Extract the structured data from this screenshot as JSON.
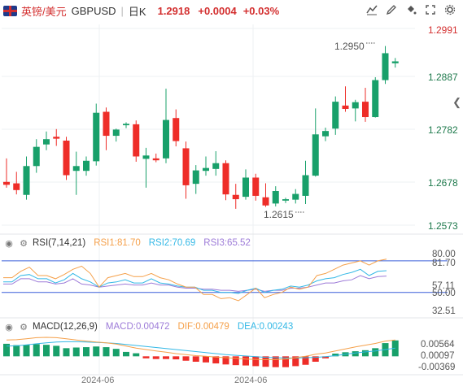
{
  "header": {
    "pair_name": "英镑/美元",
    "symbol": "GBPUSD",
    "interval": "日K",
    "last_price": "1.2918",
    "change": "+0.0004",
    "change_pct": "+0.03%",
    "tools": [
      "chart-type-icon",
      "draw-icon",
      "fill-icon",
      "fullscreen-icon",
      "settings-icon"
    ]
  },
  "colors": {
    "up": "#18a06a",
    "down": "#ee2d28",
    "rsi1": "#f5a04a",
    "rsi2": "#33b8e6",
    "rsi3": "#9d7bd8",
    "macd": "#9d7bd8",
    "dif": "#f5a04a",
    "dea": "#33b8e6",
    "price_label": "#d32f2f",
    "ref_line": "#3a5fd9"
  },
  "main_axis": {
    "top_label": "1.2991",
    "ticks": [
      "1.2887",
      "1.2782",
      "1.2678",
      "1.2573"
    ],
    "high_annotation": "1.2950",
    "low_annotation": "1.2615"
  },
  "rsi": {
    "name": "RSI(7,14,21)",
    "rsi1": "RSI1:81.70",
    "rsi2": "RSI2:70.69",
    "rsi3": "RSI3:65.52",
    "axis": [
      "80.00",
      "81.70",
      "57.11",
      "50.00",
      "32.51"
    ]
  },
  "macd": {
    "name": "MACD(12,26,9)",
    "macd": "MACD:0.00472",
    "dif": "DIF:0.00479",
    "dea": "DEA:0.00243",
    "axis": [
      "0.00564",
      "0.00097",
      "-0.00369"
    ]
  },
  "date_labels": [
    "2024-06",
    "2024-06"
  ],
  "chart_data": {
    "type": "candlestick",
    "candles": [
      {
        "o": 1.2667,
        "h": 1.2716,
        "l": 1.2655,
        "c": 1.2661
      },
      {
        "o": 1.2664,
        "h": 1.2688,
        "l": 1.2641,
        "c": 1.265
      },
      {
        "o": 1.264,
        "h": 1.272,
        "l": 1.263,
        "c": 1.27
      },
      {
        "o": 1.27,
        "h": 1.2756,
        "l": 1.2686,
        "c": 1.274
      },
      {
        "o": 1.2745,
        "h": 1.2772,
        "l": 1.2733,
        "c": 1.2756
      },
      {
        "o": 1.2761,
        "h": 1.2777,
        "l": 1.2742,
        "c": 1.2757
      },
      {
        "o": 1.2753,
        "h": 1.2761,
        "l": 1.2671,
        "c": 1.2681
      },
      {
        "o": 1.269,
        "h": 1.273,
        "l": 1.264,
        "c": 1.27
      },
      {
        "o": 1.269,
        "h": 1.272,
        "l": 1.268,
        "c": 1.2711
      },
      {
        "o": 1.271,
        "h": 1.283,
        "l": 1.2701,
        "c": 1.2811
      },
      {
        "o": 1.2813,
        "h": 1.2822,
        "l": 1.2733,
        "c": 1.2763
      },
      {
        "o": 1.2763,
        "h": 1.2778,
        "l": 1.2751,
        "c": 1.2776
      },
      {
        "o": 1.2785,
        "h": 1.2791,
        "l": 1.2779,
        "c": 1.2788
      },
      {
        "o": 1.2787,
        "h": 1.2795,
        "l": 1.2709,
        "c": 1.272
      },
      {
        "o": 1.2715,
        "h": 1.2738,
        "l": 1.2655,
        "c": 1.2722
      },
      {
        "o": 1.2716,
        "h": 1.2726,
        "l": 1.2708,
        "c": 1.2712
      },
      {
        "o": 1.2716,
        "h": 1.2861,
        "l": 1.2706,
        "c": 1.2796
      },
      {
        "o": 1.28,
        "h": 1.2818,
        "l": 1.2741,
        "c": 1.2752
      },
      {
        "o": 1.2737,
        "h": 1.2751,
        "l": 1.2632,
        "c": 1.266
      },
      {
        "o": 1.2663,
        "h": 1.2702,
        "l": 1.2642,
        "c": 1.2691
      },
      {
        "o": 1.269,
        "h": 1.272,
        "l": 1.268,
        "c": 1.2696
      },
      {
        "o": 1.2694,
        "h": 1.2731,
        "l": 1.268,
        "c": 1.2706
      },
      {
        "o": 1.2706,
        "h": 1.2712,
        "l": 1.2629,
        "c": 1.2641
      },
      {
        "o": 1.264,
        "h": 1.2663,
        "l": 1.2611,
        "c": 1.2631
      },
      {
        "o": 1.2636,
        "h": 1.2693,
        "l": 1.263,
        "c": 1.2676
      },
      {
        "o": 1.2676,
        "h": 1.2684,
        "l": 1.2628,
        "c": 1.2638
      },
      {
        "o": 1.2635,
        "h": 1.2664,
        "l": 1.2615,
        "c": 1.2618
      },
      {
        "o": 1.2622,
        "h": 1.2658,
        "l": 1.2616,
        "c": 1.2648
      },
      {
        "o": 1.2628,
        "h": 1.2634,
        "l": 1.2623,
        "c": 1.2631
      },
      {
        "o": 1.263,
        "h": 1.2652,
        "l": 1.2622,
        "c": 1.2642
      },
      {
        "o": 1.2638,
        "h": 1.2711,
        "l": 1.2621,
        "c": 1.2681
      },
      {
        "o": 1.268,
        "h": 1.282,
        "l": 1.2678,
        "c": 1.2766
      },
      {
        "o": 1.2762,
        "h": 1.278,
        "l": 1.2752,
        "c": 1.2773
      },
      {
        "o": 1.2778,
        "h": 1.2845,
        "l": 1.2765,
        "c": 1.2834
      },
      {
        "o": 1.2826,
        "h": 1.2866,
        "l": 1.2813,
        "c": 1.2819
      },
      {
        "o": 1.282,
        "h": 1.2838,
        "l": 1.2793,
        "c": 1.2833
      },
      {
        "o": 1.2834,
        "h": 1.2863,
        "l": 1.2792,
        "c": 1.2802
      },
      {
        "o": 1.2802,
        "h": 1.2885,
        "l": 1.2801,
        "c": 1.2879
      },
      {
        "o": 1.2879,
        "h": 1.295,
        "l": 1.2871,
        "c": 1.2935
      },
      {
        "o": 1.2914,
        "h": 1.2925,
        "l": 1.2905,
        "c": 1.2918
      }
    ],
    "y_range": [
      1.256,
      1.2995
    ],
    "rsi_range": [
      25,
      90
    ],
    "rsi_ref_lines": [
      80,
      50
    ],
    "rsi1": [
      64,
      64,
      70,
      74,
      66,
      66,
      63,
      67,
      72,
      75,
      68,
      55,
      64,
      66,
      68,
      65,
      65,
      68,
      64,
      62,
      58,
      55,
      55,
      48,
      48,
      44,
      45,
      42,
      48,
      54,
      45,
      48,
      50,
      55,
      53,
      55,
      66,
      68,
      72,
      76,
      78,
      80,
      76,
      80,
      81.7
    ],
    "rsi2": [
      60,
      60,
      66,
      67,
      63,
      63,
      59,
      62,
      68,
      63,
      60,
      55,
      59,
      60,
      62,
      59,
      59,
      63,
      59,
      58,
      56,
      55,
      55,
      52,
      52,
      50,
      50,
      49,
      52,
      54,
      50,
      52,
      53,
      56,
      55,
      57,
      61,
      63,
      64,
      67,
      69,
      72,
      66,
      70,
      70.69
    ],
    "rsi3": [
      58,
      58,
      63,
      63,
      60,
      60,
      58,
      59,
      63,
      58,
      57,
      55,
      56,
      57,
      58,
      57,
      57,
      59,
      57,
      57,
      55,
      54,
      54,
      53,
      53,
      52,
      52,
      51,
      52,
      53,
      51,
      52,
      52,
      54,
      54,
      55,
      57,
      59,
      59,
      61,
      62,
      66,
      63,
      65,
      65.52
    ],
    "macd_range": [
      -0.0052,
      0.0068
    ],
    "macd_hist": [
      0.0037,
      0.0033,
      0.0034,
      0.0036,
      0.0034,
      0.0031,
      0.0024,
      0.0026,
      0.0027,
      0.0029,
      0.0027,
      0.0022,
      0.0013,
      0.0009,
      -0.0006,
      -0.0008,
      -0.0008,
      -0.0009,
      -0.0013,
      -0.0016,
      -0.0018,
      -0.0021,
      -0.0024,
      -0.0026,
      -0.0027,
      -0.0029,
      -0.0031,
      -0.0032,
      -0.0032,
      -0.0029,
      -0.0025,
      -0.0016,
      -0.0006,
      0.0008,
      0.0012,
      0.0015,
      0.0018,
      0.0024,
      0.0039,
      0.0047
    ],
    "dif": [
      0.0048,
      0.0049,
      0.0052,
      0.0055,
      0.0056,
      0.0055,
      0.0052,
      0.0048,
      0.0045,
      0.0042,
      0.004,
      0.0036,
      0.003,
      0.0024,
      0.002,
      0.0016,
      0.0012,
      0.0008,
      0.0005,
      0.0002,
      0.0,
      -0.0002,
      -0.0004,
      -0.0006,
      -0.0008,
      -0.0009,
      -0.001,
      -0.001,
      -0.0008,
      -0.0004,
      0.0,
      0.0006,
      0.001,
      0.0016,
      0.0022,
      0.0028,
      0.0033,
      0.0038,
      0.0045,
      0.0048
    ],
    "dea": [
      0.003,
      0.0031,
      0.0034,
      0.0037,
      0.004,
      0.0042,
      0.0043,
      0.0043,
      0.0042,
      0.0041,
      0.004,
      0.0038,
      0.0035,
      0.0032,
      0.0029,
      0.0026,
      0.0023,
      0.002,
      0.0017,
      0.0014,
      0.0011,
      0.0008,
      0.0005,
      0.0003,
      0.0001,
      -0.0001,
      -0.0003,
      -0.0004,
      -0.0005,
      -0.0005,
      -0.0004,
      -0.0003,
      -0.0001,
      0.0002,
      0.0006,
      0.001,
      0.0013,
      0.0016,
      0.002,
      0.0024
    ]
  }
}
